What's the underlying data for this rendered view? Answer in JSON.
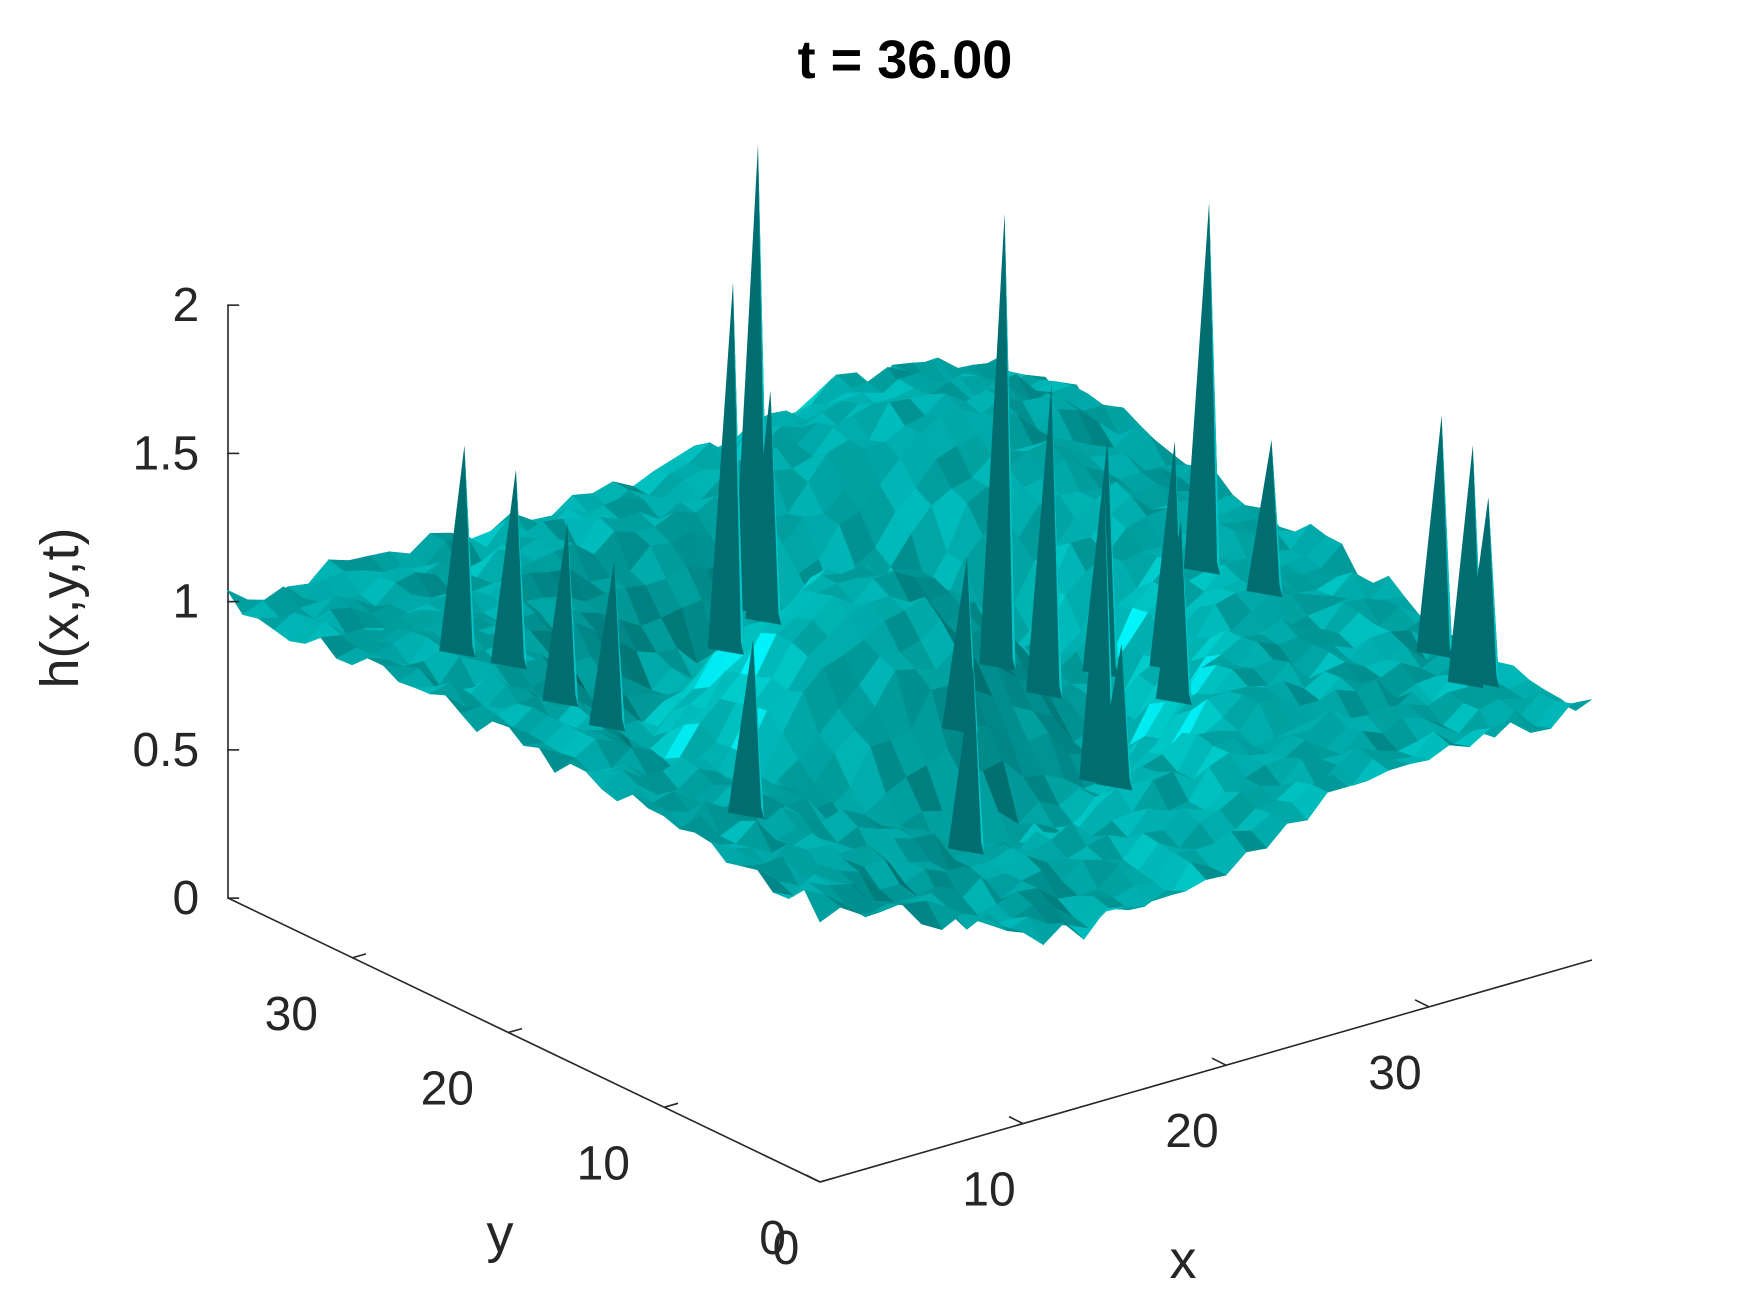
{
  "chart_data": {
    "type": "surface3d",
    "title": "t = 36.00",
    "xlabel": "x",
    "ylabel": "y",
    "zlabel": "h(x,y,t)",
    "xlim": [
      0,
      38
    ],
    "ylim": [
      0,
      38
    ],
    "zlim": [
      0,
      2
    ],
    "xticks": [
      "0",
      "10",
      "20",
      "30"
    ],
    "yticks": [
      "0",
      "10",
      "20",
      "30"
    ],
    "zticks": [
      "0",
      "0.5",
      "1",
      "1.5",
      "2"
    ],
    "grid": false,
    "colors": {
      "surface": "#00b3b3",
      "highlight": "#00ffff",
      "shadow": "#006d70",
      "axis": "#262626"
    },
    "surface": {
      "base_level": 1.0,
      "ring_center": [
        18,
        20
      ],
      "ring_radius": 9,
      "ring_depth": 0.35,
      "edge_level": 1.0,
      "corner_drop": 0.4
    },
    "peaks": [
      {
        "x": 20,
        "y": 30,
        "h": 2.35
      },
      {
        "x": 26,
        "y": 22,
        "h": 2.2
      },
      {
        "x": 33,
        "y": 18,
        "h": 2.2
      },
      {
        "x": 18,
        "y": 29,
        "h": 1.95
      },
      {
        "x": 16,
        "y": 24,
        "h": 1.75
      },
      {
        "x": 4,
        "y": 28,
        "h": 1.7
      },
      {
        "x": 5,
        "y": 26,
        "h": 1.65
      },
      {
        "x": 26,
        "y": 19,
        "h": 1.7
      },
      {
        "x": 29,
        "y": 15,
        "h": 1.55
      },
      {
        "x": 33,
        "y": 14,
        "h": 1.5
      },
      {
        "x": 36,
        "y": 7,
        "h": 1.7
      },
      {
        "x": 36,
        "y": 5,
        "h": 1.65
      },
      {
        "x": 36,
        "y": 4,
        "h": 1.5
      },
      {
        "x": 28,
        "y": 18,
        "h": 1.5
      },
      {
        "x": 6,
        "y": 24,
        "h": 1.5
      },
      {
        "x": 6,
        "y": 21,
        "h": 1.45
      },
      {
        "x": 18,
        "y": 14,
        "h": 1.4
      },
      {
        "x": 9,
        "y": 16,
        "h": 1.25
      },
      {
        "x": 21,
        "y": 8,
        "h": 1.2
      },
      {
        "x": 16,
        "y": 11,
        "h": 1.15
      },
      {
        "x": 27,
        "y": 12,
        "h": 1.4
      },
      {
        "x": 24,
        "y": 13,
        "h": 1.55
      }
    ]
  }
}
